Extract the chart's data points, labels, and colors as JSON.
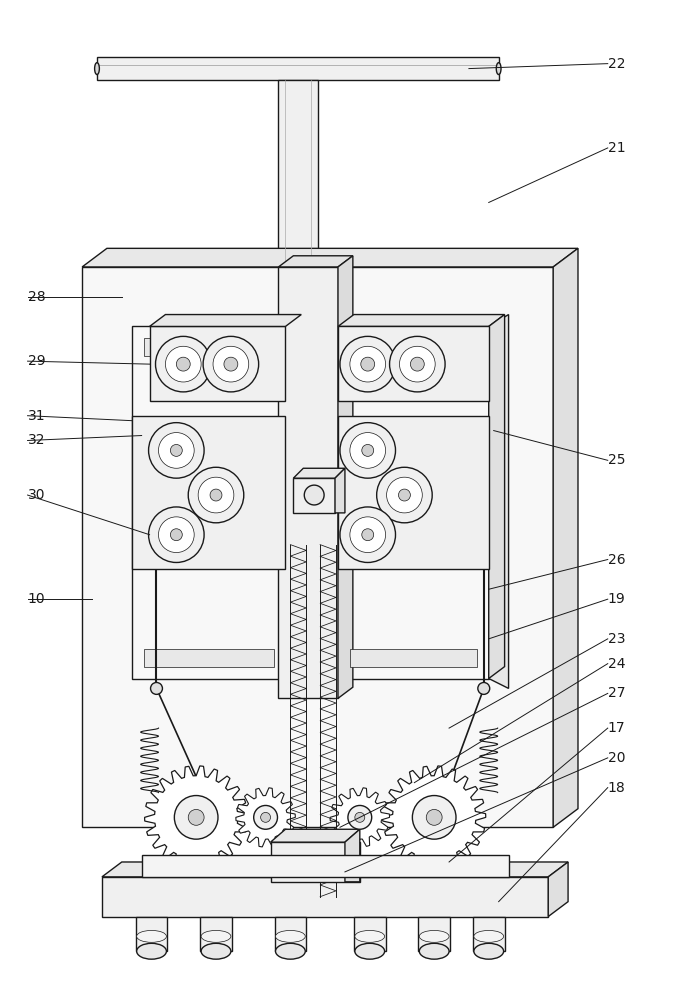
{
  "fig_width": 6.73,
  "fig_height": 10.0,
  "dpi": 100,
  "bg_color": "#ffffff",
  "lc": "#1a1a1a",
  "lw": 1.0,
  "lw_thin": 0.5,
  "lw_thick": 1.3
}
